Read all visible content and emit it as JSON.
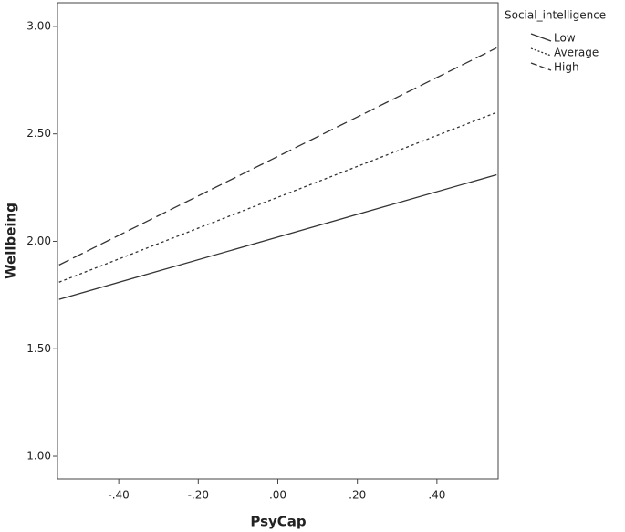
{
  "chart_data": {
    "type": "line",
    "x_label": "PsyCap",
    "y_label": "Wellbeing",
    "legend_title": "Social_intelligence",
    "legend": "outside-top-right",
    "x": [
      -0.55,
      0.55
    ],
    "series": [
      {
        "name": "Low",
        "color": "#333333",
        "dash": "solid",
        "values": [
          1.73,
          2.31
        ]
      },
      {
        "name": "Average",
        "color": "#333333",
        "dash": "dotted",
        "values": [
          1.81,
          2.6
        ]
      },
      {
        "name": "High",
        "color": "#333333",
        "dash": "dashed",
        "values": [
          1.89,
          2.9
        ]
      }
    ],
    "xlim": [
      -0.554,
      0.554
    ],
    "xticks": [
      {
        "value": -0.4,
        "label": "-.40"
      },
      {
        "value": -0.2,
        "label": "-.20"
      },
      {
        "value": 0,
        "label": ".00"
      },
      {
        "value": 0.2,
        "label": ".20"
      },
      {
        "value": 0.4,
        "label": ".40"
      }
    ],
    "ylim": [
      0.894,
      3.11
    ],
    "yticks": [
      {
        "value": 1,
        "label": "1.00"
      },
      {
        "value": 1.5,
        "label": "1.50"
      },
      {
        "value": 2,
        "label": "2.00"
      },
      {
        "value": 2.5,
        "label": "2.50"
      },
      {
        "value": 3,
        "label": "3.00"
      }
    ],
    "grid": false
  }
}
